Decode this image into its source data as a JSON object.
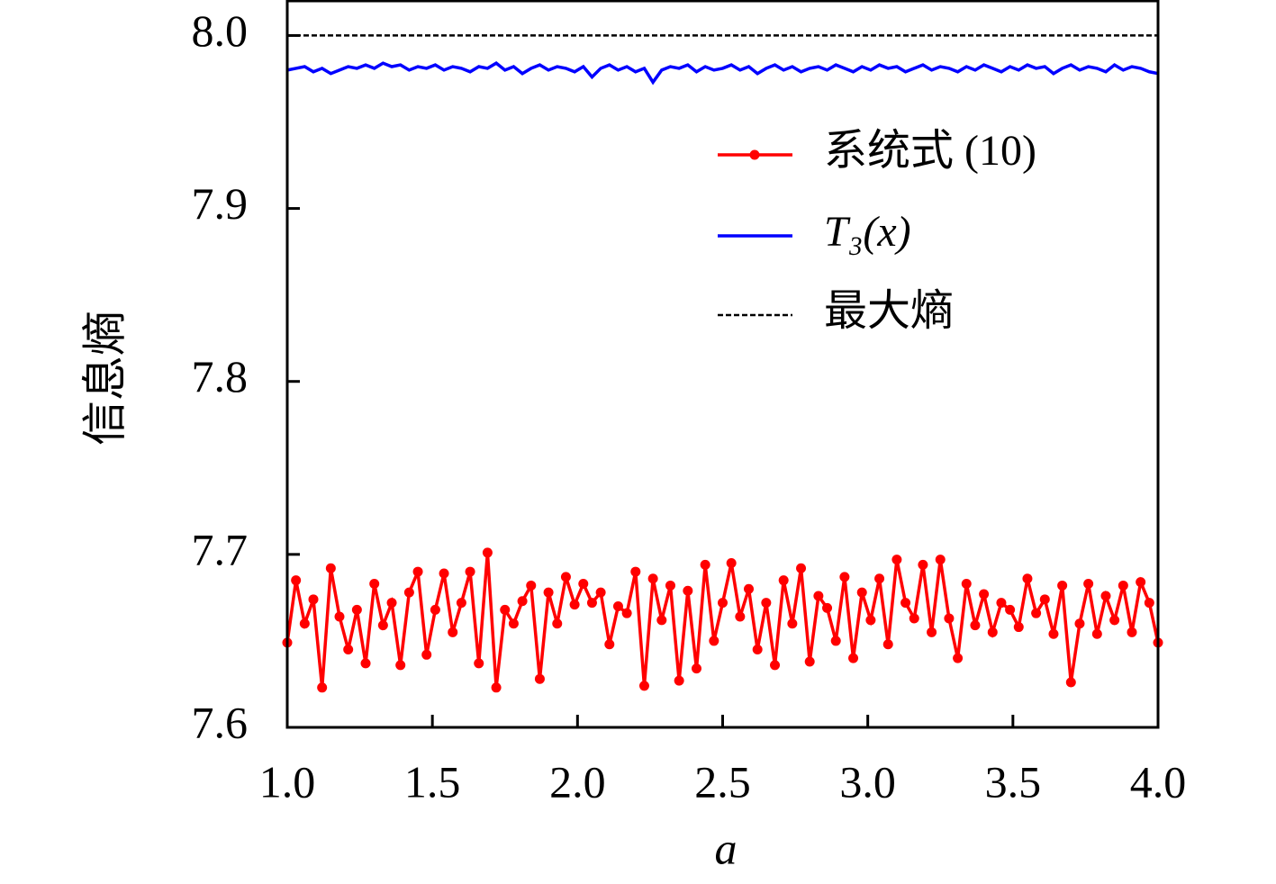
{
  "chart_data": {
    "type": "line",
    "xlabel": "a",
    "ylabel": "信息熵",
    "xlim": [
      1,
      4
    ],
    "ylim": [
      7.6,
      8.02
    ],
    "xticks": [
      {
        "value": 1,
        "label": "1.0"
      },
      1.5,
      {
        "value": 2,
        "label": "2.0"
      },
      2.5,
      {
        "value": 3,
        "label": "3.0"
      },
      3.5,
      {
        "value": 4,
        "label": "4.0"
      }
    ],
    "yticks": [
      7.6,
      7.7,
      7.8,
      7.9,
      {
        "value": 8,
        "label": "8.0"
      }
    ],
    "legend": "upper right",
    "x": [
      1,
      1.03,
      1.06,
      1.09,
      1.12,
      1.15,
      1.18,
      1.21,
      1.24,
      1.27,
      1.3,
      1.33,
      1.36,
      1.39,
      1.42,
      1.45,
      1.48,
      1.51,
      1.54,
      1.57,
      1.6,
      1.63,
      1.66,
      1.69,
      1.72,
      1.75,
      1.78,
      1.81,
      1.84,
      1.87,
      1.9,
      1.93,
      1.96,
      1.99,
      2.02,
      2.05,
      2.08,
      2.11,
      2.14,
      2.17,
      2.2,
      2.23,
      2.26,
      2.29,
      2.32,
      2.35,
      2.38,
      2.41,
      2.44,
      2.47,
      2.5,
      2.53,
      2.56,
      2.59,
      2.62,
      2.65,
      2.68,
      2.71,
      2.74,
      2.77,
      2.8,
      2.83,
      2.86,
      2.89,
      2.92,
      2.95,
      2.98,
      3.01,
      3.04,
      3.07,
      3.1,
      3.13,
      3.16,
      3.19,
      3.22,
      3.25,
      3.28,
      3.31,
      3.34,
      3.37,
      3.4,
      3.43,
      3.46,
      3.49,
      3.52,
      3.55,
      3.58,
      3.61,
      3.64,
      3.67,
      3.7,
      3.73,
      3.76,
      3.79,
      3.82,
      3.85,
      3.88,
      3.91,
      3.94,
      3.97,
      4
    ],
    "series": [
      {
        "name": "系统式 (10)",
        "color": "#ff0000",
        "marker": true,
        "values": [
          7.649,
          7.685,
          7.66,
          7.674,
          7.623,
          7.692,
          7.664,
          7.645,
          7.668,
          7.637,
          7.683,
          7.659,
          7.672,
          7.636,
          7.678,
          7.69,
          7.642,
          7.668,
          7.689,
          7.655,
          7.672,
          7.69,
          7.637,
          7.701,
          7.623,
          7.668,
          7.66,
          7.673,
          7.682,
          7.628,
          7.678,
          7.66,
          7.687,
          7.671,
          7.683,
          7.672,
          7.678,
          7.648,
          7.67,
          7.666,
          7.69,
          7.624,
          7.686,
          7.662,
          7.682,
          7.627,
          7.679,
          7.634,
          7.694,
          7.65,
          7.672,
          7.695,
          7.664,
          7.68,
          7.645,
          7.672,
          7.636,
          7.685,
          7.66,
          7.692,
          7.638,
          7.676,
          7.669,
          7.65,
          7.687,
          7.64,
          7.678,
          7.662,
          7.686,
          7.648,
          7.697,
          7.672,
          7.663,
          7.694,
          7.655,
          7.697,
          7.663,
          7.64,
          7.683,
          7.659,
          7.677,
          7.655,
          7.672,
          7.668,
          7.658,
          7.686,
          7.666,
          7.674,
          7.654,
          7.682,
          7.626,
          7.66,
          7.683,
          7.654,
          7.676,
          7.662,
          7.682,
          7.655,
          7.684,
          7.672,
          7.649
        ]
      },
      {
        "name": "T₃(x)",
        "color": "#0000ff",
        "values": [
          7.98,
          7.981,
          7.982,
          7.979,
          7.981,
          7.978,
          7.98,
          7.982,
          7.981,
          7.983,
          7.981,
          7.984,
          7.982,
          7.983,
          7.98,
          7.982,
          7.981,
          7.983,
          7.98,
          7.982,
          7.981,
          7.979,
          7.982,
          7.981,
          7.984,
          7.98,
          7.982,
          7.978,
          7.981,
          7.983,
          7.98,
          7.982,
          7.981,
          7.979,
          7.982,
          7.976,
          7.981,
          7.983,
          7.98,
          7.982,
          7.979,
          7.981,
          7.973,
          7.98,
          7.982,
          7.981,
          7.983,
          7.979,
          7.982,
          7.98,
          7.981,
          7.983,
          7.98,
          7.982,
          7.978,
          7.981,
          7.983,
          7.98,
          7.982,
          7.979,
          7.981,
          7.982,
          7.98,
          7.983,
          7.981,
          7.979,
          7.982,
          7.98,
          7.983,
          7.981,
          7.982,
          7.979,
          7.981,
          7.983,
          7.98,
          7.982,
          7.981,
          7.979,
          7.982,
          7.98,
          7.983,
          7.981,
          7.979,
          7.982,
          7.98,
          7.983,
          7.981,
          7.982,
          7.978,
          7.981,
          7.983,
          7.98,
          7.982,
          7.981,
          7.979,
          7.983,
          7.98,
          7.982,
          7.981,
          7.979,
          7.978
        ]
      },
      {
        "name": "最大熵",
        "color": "#000000",
        "dashed": true,
        "x": [
          1,
          4
        ],
        "values": [
          8,
          8
        ]
      }
    ]
  }
}
